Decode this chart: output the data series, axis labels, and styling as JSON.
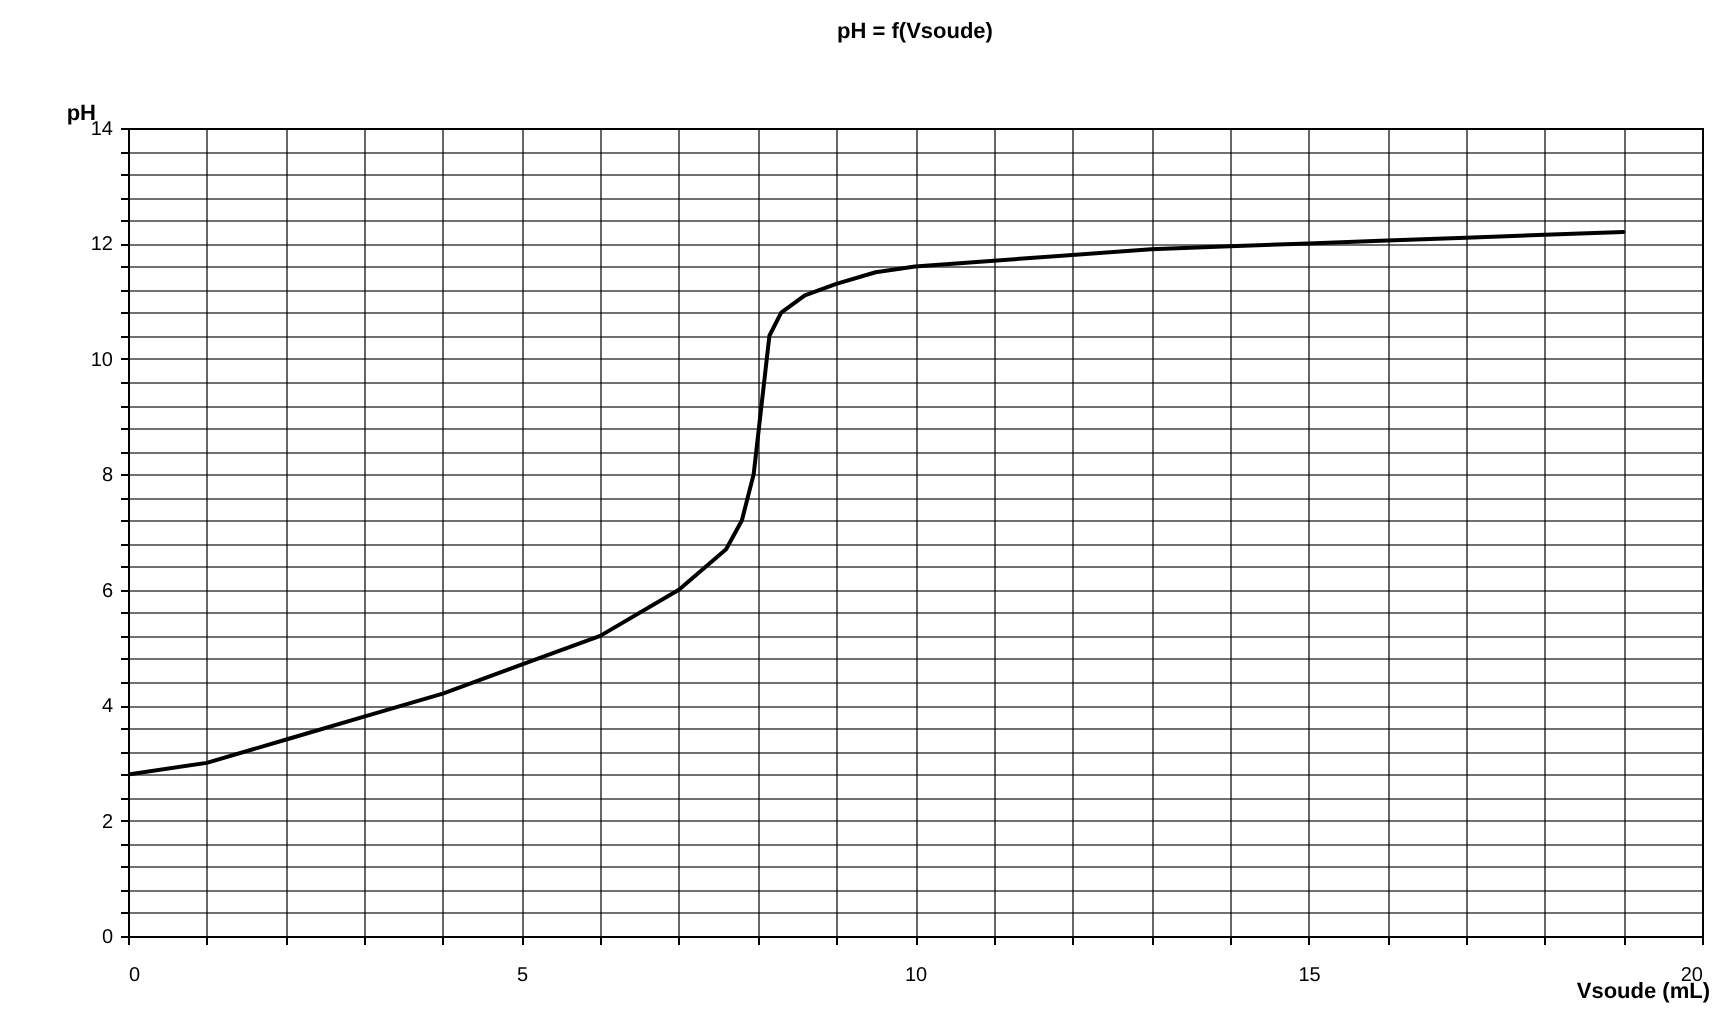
{
  "chart_data": {
    "type": "line",
    "title": "pH = f(Vsoude)",
    "xlabel": "Vsoude (mL)",
    "ylabel": "pH",
    "x": [
      0,
      1,
      2,
      3,
      4,
      5,
      6,
      7,
      7.6,
      7.8,
      7.95,
      8.05,
      8.15,
      8.3,
      8.6,
      9,
      9.5,
      10,
      11,
      12,
      13,
      14,
      15,
      16,
      17,
      18,
      19
    ],
    "series": [
      {
        "color": "#000000",
        "values": [
          2.8,
          3.0,
          3.4,
          3.8,
          4.2,
          4.7,
          5.2,
          6.0,
          6.7,
          7.2,
          8.0,
          9.2,
          10.4,
          10.8,
          11.1,
          11.3,
          11.5,
          11.6,
          11.7,
          11.8,
          11.9,
          11.95,
          12.0,
          12.05,
          12.1,
          12.15,
          12.2
        ]
      }
    ],
    "xlim": [
      0,
      20
    ],
    "ylim": [
      0,
      14
    ],
    "xticks": [
      0,
      {
        "value": 1,
        "label": null
      },
      {
        "value": 2,
        "label": null
      },
      {
        "value": 3,
        "label": null
      },
      {
        "value": 4,
        "label": null
      },
      5,
      {
        "value": 6,
        "label": null
      },
      {
        "value": 7,
        "label": null
      },
      {
        "value": 8,
        "label": null
      },
      {
        "value": 9,
        "label": null
      },
      10,
      {
        "value": 11,
        "label": null
      },
      {
        "value": 12,
        "label": null
      },
      {
        "value": 13,
        "label": null
      },
      {
        "value": 14,
        "label": null
      },
      15,
      {
        "value": 16,
        "label": null
      },
      {
        "value": 17,
        "label": null
      },
      {
        "value": 18,
        "label": null
      },
      {
        "value": 19,
        "label": null
      },
      20
    ],
    "yticks": [
      0,
      {
        "value": 0.4,
        "label": null
      },
      {
        "value": 0.8,
        "label": null
      },
      {
        "value": 1.2,
        "label": null
      },
      {
        "value": 1.6,
        "label": null
      },
      2,
      {
        "value": 2.4,
        "label": null
      },
      {
        "value": 2.8,
        "label": null
      },
      {
        "value": 3.2,
        "label": null
      },
      {
        "value": 3.6,
        "label": null
      },
      4,
      {
        "value": 4.4,
        "label": null
      },
      {
        "value": 4.8,
        "label": null
      },
      {
        "value": 5.2,
        "label": null
      },
      {
        "value": 5.6,
        "label": null
      },
      6,
      {
        "value": 6.4,
        "label": null
      },
      {
        "value": 6.8,
        "label": null
      },
      {
        "value": 7.2,
        "label": null
      },
      {
        "value": 7.6,
        "label": null
      },
      8,
      {
        "value": 8.4,
        "label": null
      },
      {
        "value": 8.8,
        "label": null
      },
      {
        "value": 9.2,
        "label": null
      },
      {
        "value": 9.6,
        "label": null
      },
      10,
      {
        "value": 10.4,
        "label": null
      },
      {
        "value": 10.8,
        "label": null
      },
      {
        "value": 11.2,
        "label": null
      },
      {
        "value": 11.6,
        "label": null
      },
      12,
      {
        "value": 12.4,
        "label": null
      },
      {
        "value": 12.8,
        "label": null
      },
      {
        "value": 13.2,
        "label": null
      },
      {
        "value": 13.6,
        "label": null
      },
      14
    ],
    "grid": true,
    "marker": "none",
    "line_style": "solid"
  }
}
